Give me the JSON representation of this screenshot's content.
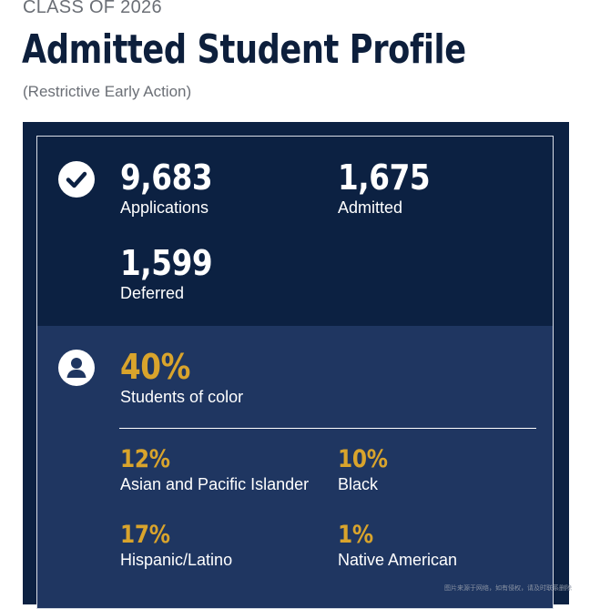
{
  "header": {
    "eyebrow": "CLASS OF 2026",
    "title": "Admitted Student Profile",
    "subtitle": "(Restrictive Early Action)"
  },
  "applications_section": {
    "icon": "check-circle-icon",
    "stats": [
      {
        "value": "9,683",
        "label": "Applications"
      },
      {
        "value": "1,675",
        "label": "Admitted"
      },
      {
        "value": "1,599",
        "label": "Deferred"
      }
    ]
  },
  "diversity_section": {
    "icon": "user-circle-icon",
    "headline": {
      "value": "40%",
      "label": "Students of color"
    },
    "breakdown": [
      {
        "value": "12%",
        "label": "Asian and Pacific Islander"
      },
      {
        "value": "10%",
        "label": "Black"
      },
      {
        "value": "17%",
        "label": "Hispanic/Latino"
      },
      {
        "value": "1%",
        "label": "Native American"
      }
    ]
  },
  "colors": {
    "navy": "#0c2142",
    "navy_light": "#1f3661",
    "gold": "#d9a42c",
    "title": "#0d1f3c"
  },
  "watermark": "图片来源于网络，如有侵权，请及时联系删除"
}
